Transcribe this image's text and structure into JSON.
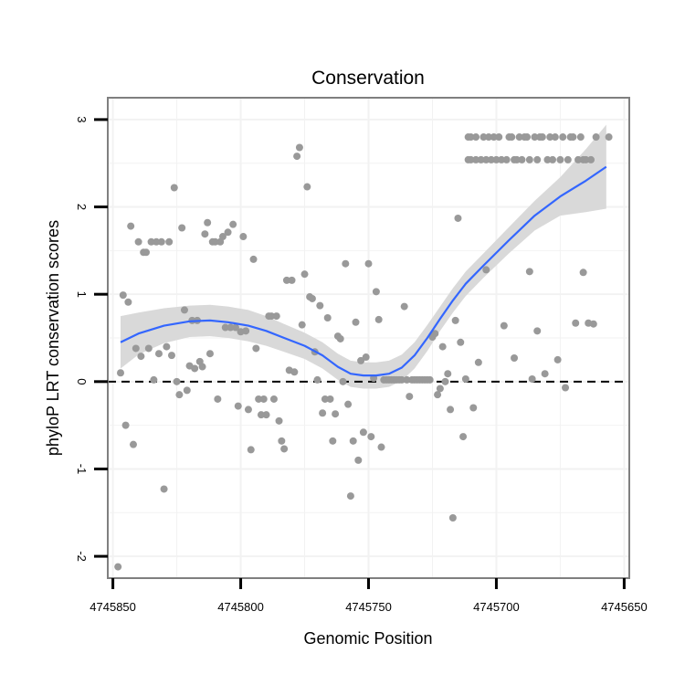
{
  "chart_data": {
    "type": "scatter",
    "title": "Conservation",
    "xlabel": "Genomic Position",
    "ylabel": "phyloP LRT conservation scores",
    "x_reversed": true,
    "xlim": [
      4745852,
      4745648
    ],
    "ylim": [
      -2.25,
      3.25
    ],
    "x_ticks": [
      4745850,
      4745800,
      4745750,
      4745700,
      4745650
    ],
    "x_tick_labels": [
      "4745850",
      "4745800",
      "4745750",
      "4745700",
      "4745650"
    ],
    "y_ticks": [
      -2,
      -1,
      0,
      1,
      2,
      3
    ],
    "y_tick_labels": [
      "-2",
      "-1",
      "0",
      "1",
      "2",
      "3"
    ],
    "grid": true,
    "reference_line": {
      "y": 0,
      "style": "dashed"
    },
    "colors": {
      "points": "#999999",
      "smooth_line": "#3366ff",
      "ribbon": "#d9d9d9",
      "panel_border": "#7f7f7f",
      "grid": "#f2f2f2"
    },
    "points": [
      [
        4745848,
        -2.12
      ],
      [
        4745847,
        0.1
      ],
      [
        4745846,
        0.99
      ],
      [
        4745845,
        -0.5
      ],
      [
        4745844,
        0.91
      ],
      [
        4745843,
        1.78
      ],
      [
        4745842,
        -0.72
      ],
      [
        4745841,
        0.38
      ],
      [
        4745840,
        1.6
      ],
      [
        4745839,
        0.29
      ],
      [
        4745838,
        1.48
      ],
      [
        4745837,
        1.48
      ],
      [
        4745836,
        0.38
      ],
      [
        4745835,
        1.6
      ],
      [
        4745834,
        0.02
      ],
      [
        4745833,
        1.6
      ],
      [
        4745832,
        0.32
      ],
      [
        4745831,
        1.6
      ],
      [
        4745830,
        -1.23
      ],
      [
        4745829,
        0.4
      ],
      [
        4745828,
        1.6
      ],
      [
        4745827,
        0.3
      ],
      [
        4745826,
        2.22
      ],
      [
        4745825,
        0.0
      ],
      [
        4745824,
        -0.15
      ],
      [
        4745823,
        1.76
      ],
      [
        4745822,
        0.82
      ],
      [
        4745821,
        -0.1
      ],
      [
        4745820,
        0.18
      ],
      [
        4745819,
        0.7
      ],
      [
        4745818,
        0.15
      ],
      [
        4745817,
        0.7
      ],
      [
        4745816,
        0.23
      ],
      [
        4745815,
        0.17
      ],
      [
        4745814,
        1.69
      ],
      [
        4745813,
        1.82
      ],
      [
        4745812,
        0.32
      ],
      [
        4745811,
        1.6
      ],
      [
        4745810,
        1.6
      ],
      [
        4745809,
        -0.2
      ],
      [
        4745808,
        1.6
      ],
      [
        4745807,
        1.66
      ],
      [
        4745806,
        0.62
      ],
      [
        4745805,
        1.71
      ],
      [
        4745804,
        0.62
      ],
      [
        4745803,
        1.8
      ],
      [
        4745802,
        0.62
      ],
      [
        4745801,
        -0.28
      ],
      [
        4745800,
        0.57
      ],
      [
        4745799,
        1.66
      ],
      [
        4745798,
        0.58
      ],
      [
        4745797,
        -0.32
      ],
      [
        4745796,
        -0.78
      ],
      [
        4745795,
        1.4
      ],
      [
        4745794,
        0.38
      ],
      [
        4745793,
        -0.2
      ],
      [
        4745792,
        -0.38
      ],
      [
        4745791,
        -0.2
      ],
      [
        4745790,
        -0.38
      ],
      [
        4745789,
        0.75
      ],
      [
        4745788,
        0.75
      ],
      [
        4745787,
        -0.2
      ],
      [
        4745786,
        0.75
      ],
      [
        4745785,
        -0.45
      ],
      [
        4745784,
        -0.68
      ],
      [
        4745783,
        -0.77
      ],
      [
        4745782,
        1.16
      ],
      [
        4745781,
        0.13
      ],
      [
        4745780,
        1.16
      ],
      [
        4745779,
        0.11
      ],
      [
        4745778,
        2.58
      ],
      [
        4745777,
        2.68
      ],
      [
        4745776,
        0.65
      ],
      [
        4745775,
        1.23
      ],
      [
        4745774,
        2.23
      ],
      [
        4745773,
        0.97
      ],
      [
        4745772,
        0.95
      ],
      [
        4745771,
        0.34
      ],
      [
        4745770,
        0.02
      ],
      [
        4745769,
        0.87
      ],
      [
        4745768,
        -0.36
      ],
      [
        4745767,
        -0.2
      ],
      [
        4745766,
        0.73
      ],
      [
        4745765,
        -0.2
      ],
      [
        4745764,
        -0.68
      ],
      [
        4745763,
        -0.37
      ],
      [
        4745762,
        0.52
      ],
      [
        4745761,
        0.49
      ],
      [
        4745760,
        0.0
      ],
      [
        4745759,
        1.35
      ],
      [
        4745758,
        -0.26
      ],
      [
        4745757,
        -1.31
      ],
      [
        4745756,
        -0.68
      ],
      [
        4745755,
        0.68
      ],
      [
        4745754,
        -0.9
      ],
      [
        4745753,
        0.24
      ],
      [
        4745752,
        -0.58
      ],
      [
        4745751,
        0.28
      ],
      [
        4745750,
        1.35
      ],
      [
        4745749,
        -0.63
      ],
      [
        4745748,
        0.04
      ],
      [
        4745747,
        1.03
      ],
      [
        4745746,
        0.71
      ],
      [
        4745745,
        -0.75
      ],
      [
        4745744,
        0.02
      ],
      [
        4745743,
        0.02
      ],
      [
        4745742,
        0.02
      ],
      [
        4745741,
        0.02
      ],
      [
        4745740,
        0.02
      ],
      [
        4745739,
        0.02
      ],
      [
        4745738,
        0.02
      ],
      [
        4745737,
        0.02
      ],
      [
        4745736,
        0.86
      ],
      [
        4745735,
        0.02
      ],
      [
        4745734,
        -0.17
      ],
      [
        4745733,
        0.02
      ],
      [
        4745732,
        0.02
      ],
      [
        4745731,
        0.02
      ],
      [
        4745730,
        0.02
      ],
      [
        4745729,
        0.02
      ],
      [
        4745728,
        0.02
      ],
      [
        4745727,
        0.02
      ],
      [
        4745726,
        0.02
      ],
      [
        4745725,
        0.51
      ],
      [
        4745724,
        0.55
      ],
      [
        4745723,
        -0.15
      ],
      [
        4745722,
        -0.08
      ],
      [
        4745721,
        0.4
      ],
      [
        4745720,
        0.0
      ],
      [
        4745719,
        0.09
      ],
      [
        4745718,
        -0.32
      ],
      [
        4745717,
        -1.56
      ],
      [
        4745716,
        0.7
      ],
      [
        4745715,
        1.87
      ],
      [
        4745714,
        0.45
      ],
      [
        4745713,
        -0.63
      ],
      [
        4745712,
        0.03
      ],
      [
        4745711,
        2.8
      ],
      [
        4745711,
        2.54
      ],
      [
        4745710,
        2.8
      ],
      [
        4745710,
        2.54
      ],
      [
        4745709,
        -0.3
      ],
      [
        4745708,
        2.8
      ],
      [
        4745708,
        2.54
      ],
      [
        4745707,
        0.22
      ],
      [
        4745706,
        2.54
      ],
      [
        4745705,
        2.8
      ],
      [
        4745704,
        1.28
      ],
      [
        4745704,
        2.54
      ],
      [
        4745703,
        2.8
      ],
      [
        4745702,
        2.54
      ],
      [
        4745701,
        2.8
      ],
      [
        4745700,
        2.54
      ],
      [
        4745699,
        2.8
      ],
      [
        4745698,
        2.54
      ],
      [
        4745697,
        0.64
      ],
      [
        4745696,
        2.54
      ],
      [
        4745695,
        2.8
      ],
      [
        4745694,
        2.8
      ],
      [
        4745693,
        0.27
      ],
      [
        4745693,
        2.54
      ],
      [
        4745692,
        2.54
      ],
      [
        4745691,
        2.8
      ],
      [
        4745690,
        2.54
      ],
      [
        4745689,
        2.8
      ],
      [
        4745688,
        2.8
      ],
      [
        4745687,
        1.26
      ],
      [
        4745687,
        2.54
      ],
      [
        4745686,
        0.03
      ],
      [
        4745685,
        2.8
      ],
      [
        4745684,
        0.58
      ],
      [
        4745684,
        2.54
      ],
      [
        4745683,
        2.8
      ],
      [
        4745682,
        2.8
      ],
      [
        4745681,
        0.09
      ],
      [
        4745680,
        2.54
      ],
      [
        4745679,
        2.8
      ],
      [
        4745678,
        2.54
      ],
      [
        4745677,
        2.8
      ],
      [
        4745676,
        0.25
      ],
      [
        4745675,
        2.54
      ],
      [
        4745674,
        2.8
      ],
      [
        4745673,
        -0.07
      ],
      [
        4745672,
        2.54
      ],
      [
        4745671,
        2.8
      ],
      [
        4745670,
        2.8
      ],
      [
        4745669,
        0.67
      ],
      [
        4745668,
        2.54
      ],
      [
        4745667,
        2.8
      ],
      [
        4745666,
        1.25
      ],
      [
        4745666,
        2.54
      ],
      [
        4745665,
        2.54
      ],
      [
        4745664,
        0.67
      ],
      [
        4745663,
        2.54
      ],
      [
        4745662,
        0.66
      ],
      [
        4745661,
        2.8
      ],
      [
        4745656,
        2.8
      ]
    ],
    "smooth_fit": {
      "x": [
        4745847,
        4745840,
        4745830,
        4745820,
        4745812,
        4745805,
        4745797,
        4745790,
        4745783,
        4745775,
        4745768,
        4745762,
        4745757,
        4745752,
        4745747,
        4745742,
        4745737,
        4745732,
        4745727,
        4745722,
        4745717,
        4745712,
        4745705,
        4745695,
        4745685,
        4745675,
        4745665,
        4745657
      ],
      "y": [
        0.45,
        0.55,
        0.64,
        0.69,
        0.7,
        0.68,
        0.64,
        0.58,
        0.5,
        0.41,
        0.3,
        0.17,
        0.09,
        0.07,
        0.07,
        0.09,
        0.16,
        0.3,
        0.5,
        0.72,
        0.93,
        1.12,
        1.33,
        1.62,
        1.9,
        2.12,
        2.3,
        2.46
      ],
      "se": [
        0.3,
        0.24,
        0.2,
        0.18,
        0.18,
        0.18,
        0.18,
        0.17,
        0.16,
        0.15,
        0.15,
        0.15,
        0.15,
        0.15,
        0.15,
        0.15,
        0.15,
        0.15,
        0.15,
        0.14,
        0.14,
        0.14,
        0.14,
        0.15,
        0.17,
        0.22,
        0.36,
        0.48
      ]
    }
  }
}
